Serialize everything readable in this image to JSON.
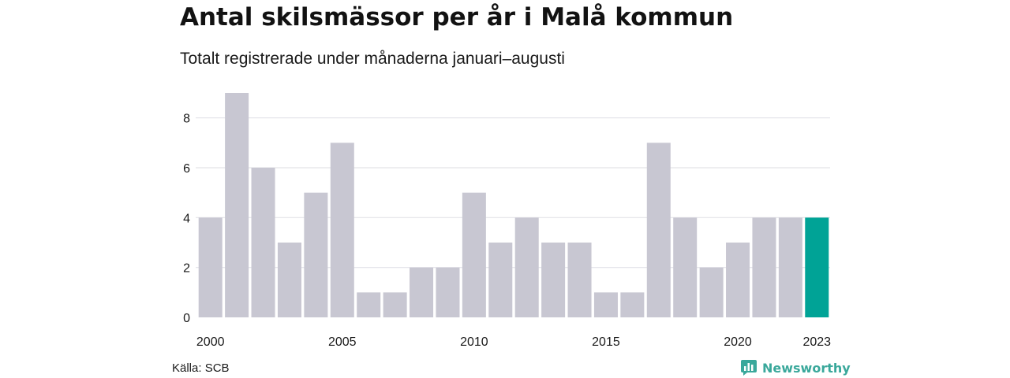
{
  "header": {
    "title": "Antal skilsmässor per år i Malå kommun",
    "subtitle": "Totalt registrerade under månaderna januari–augusti"
  },
  "footer": {
    "source": "Källa: SCB",
    "brand": "Newsworthy",
    "brand_icon": "newsworthy-logo-icon"
  },
  "colors": {
    "bar": "#c8c7d2",
    "highlight": "#00a396",
    "grid": "#e3e3e8",
    "brand": "#3aa89b"
  },
  "chart_data": {
    "type": "bar",
    "title": "Antal skilsmässor per år i Malå kommun",
    "subtitle": "Totalt registrerade under månaderna januari–augusti",
    "categories": [
      "2000",
      "2001",
      "2002",
      "2003",
      "2004",
      "2005",
      "2006",
      "2007",
      "2008",
      "2009",
      "2010",
      "2011",
      "2012",
      "2013",
      "2014",
      "2015",
      "2016",
      "2017",
      "2018",
      "2019",
      "2020",
      "2021",
      "2022",
      "2023"
    ],
    "values": [
      4,
      9,
      6,
      3,
      5,
      7,
      1,
      1,
      2,
      2,
      5,
      3,
      4,
      3,
      3,
      1,
      1,
      7,
      4,
      2,
      3,
      4,
      4,
      4
    ],
    "highlight": "2023",
    "x_tick_labels": [
      "2000",
      "2005",
      "2010",
      "2015",
      "2020",
      "2023"
    ],
    "y_ticks": [
      0,
      2,
      4,
      6,
      8
    ],
    "ylim": [
      0,
      9
    ],
    "grid": true,
    "xlabel": "",
    "ylabel": ""
  }
}
